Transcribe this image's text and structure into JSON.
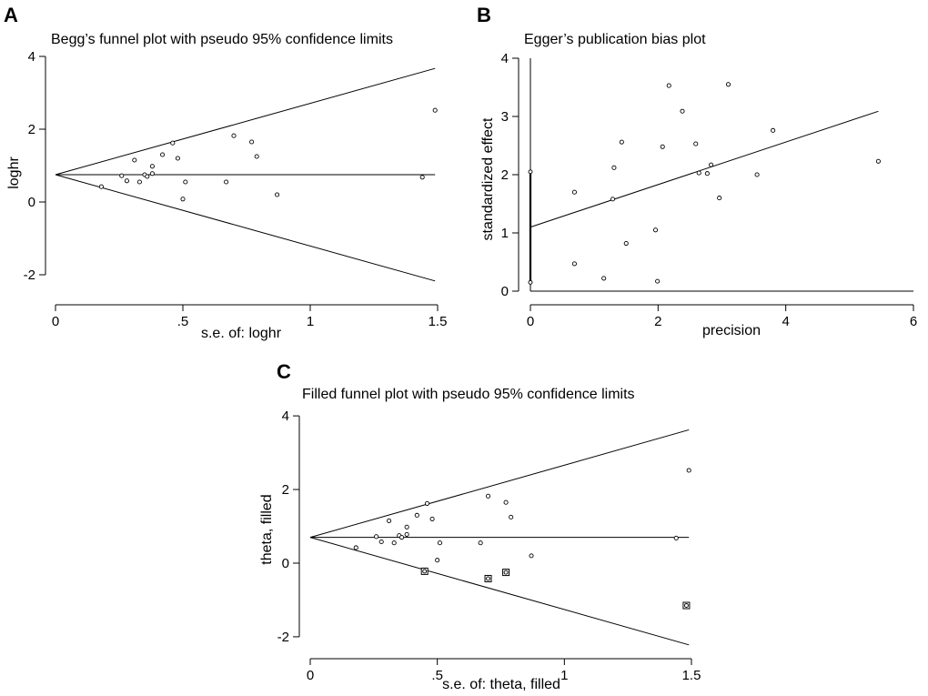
{
  "chart_data": [
    {
      "id": "A",
      "type": "scatter",
      "panel_letter": "A",
      "title": "Begg’s funnel plot with pseudo 95% confidence limits",
      "xlabel": "s.e. of: loghr",
      "ylabel": "loghr",
      "xlim": [
        0,
        1.5
      ],
      "ylim": [
        -2.2,
        4.2
      ],
      "xticks": [
        0,
        0.5,
        1,
        1.5
      ],
      "xtick_labels": [
        "0",
        ".5",
        "1",
        "1.5"
      ],
      "yticks": [
        -2,
        0,
        2,
        4
      ],
      "ytick_labels": [
        "-2",
        "0",
        "2",
        "4"
      ],
      "pooled": 0.75,
      "ci_multiplier": 1.96,
      "points": [
        [
          0.18,
          0.42
        ],
        [
          0.26,
          0.72
        ],
        [
          0.28,
          0.58
        ],
        [
          0.31,
          1.15
        ],
        [
          0.33,
          0.55
        ],
        [
          0.35,
          0.75
        ],
        [
          0.36,
          0.7
        ],
        [
          0.38,
          0.98
        ],
        [
          0.38,
          0.78
        ],
        [
          0.42,
          1.3
        ],
        [
          0.46,
          1.62
        ],
        [
          0.48,
          1.2
        ],
        [
          0.5,
          0.08
        ],
        [
          0.51,
          0.55
        ],
        [
          0.67,
          0.55
        ],
        [
          0.7,
          1.82
        ],
        [
          0.77,
          1.65
        ],
        [
          0.79,
          1.25
        ],
        [
          0.87,
          0.2
        ],
        [
          1.44,
          0.68
        ],
        [
          1.49,
          2.52
        ]
      ]
    },
    {
      "id": "B",
      "type": "scatter",
      "panel_letter": "B",
      "title": "Egger’s publication bias plot",
      "xlabel": "precision",
      "ylabel": "standardized effect",
      "xlim": [
        0,
        6
      ],
      "ylim": [
        0,
        4
      ],
      "xticks": [
        0,
        2,
        4,
        6
      ],
      "xtick_labels": [
        "0",
        "2",
        "4",
        "6"
      ],
      "yticks": [
        0,
        1,
        2,
        3,
        4
      ],
      "ytick_labels": [
        "0",
        "1",
        "2",
        "3",
        "4"
      ],
      "regression_line": {
        "intercept": 1.1,
        "slope": 0.365,
        "x_end": 5.45
      },
      "intercept_ci": [
        0.15,
        2.05
      ],
      "points": [
        [
          0.69,
          1.7
        ],
        [
          0.69,
          0.47
        ],
        [
          1.15,
          0.22
        ],
        [
          1.29,
          1.58
        ],
        [
          1.31,
          2.12
        ],
        [
          1.43,
          2.56
        ],
        [
          1.5,
          0.82
        ],
        [
          1.96,
          1.05
        ],
        [
          1.99,
          0.17
        ],
        [
          2.07,
          2.48
        ],
        [
          2.17,
          3.53
        ],
        [
          2.38,
          3.09
        ],
        [
          2.59,
          2.53
        ],
        [
          2.64,
          2.03
        ],
        [
          2.77,
          2.02
        ],
        [
          2.83,
          2.17
        ],
        [
          2.96,
          1.6
        ],
        [
          3.1,
          3.55
        ],
        [
          3.55,
          2.0
        ],
        [
          3.8,
          2.76
        ],
        [
          5.45,
          2.23
        ]
      ]
    },
    {
      "id": "C",
      "type": "scatter",
      "panel_letter": "C",
      "title": "Filled funnel plot with pseudo 95% confidence limits",
      "xlabel": "s.e. of: theta, filled",
      "ylabel": "theta, filled",
      "xlim": [
        0,
        1.5
      ],
      "ylim": [
        -2.2,
        4.2
      ],
      "xticks": [
        0,
        0.5,
        1,
        1.5
      ],
      "xtick_labels": [
        "0",
        ".5",
        "1",
        "1.5"
      ],
      "yticks": [
        -2,
        0,
        2,
        4
      ],
      "ytick_labels": [
        "-2",
        "0",
        "2",
        "4"
      ],
      "pooled": 0.7,
      "ci_multiplier": 1.96,
      "points": [
        [
          0.18,
          0.42
        ],
        [
          0.26,
          0.72
        ],
        [
          0.28,
          0.58
        ],
        [
          0.31,
          1.15
        ],
        [
          0.33,
          0.55
        ],
        [
          0.35,
          0.75
        ],
        [
          0.36,
          0.7
        ],
        [
          0.38,
          0.98
        ],
        [
          0.38,
          0.78
        ],
        [
          0.42,
          1.3
        ],
        [
          0.46,
          1.62
        ],
        [
          0.48,
          1.2
        ],
        [
          0.5,
          0.08
        ],
        [
          0.51,
          0.55
        ],
        [
          0.67,
          0.55
        ],
        [
          0.7,
          1.82
        ],
        [
          0.77,
          1.65
        ],
        [
          0.79,
          1.25
        ],
        [
          0.87,
          0.2
        ],
        [
          1.44,
          0.68
        ],
        [
          1.49,
          2.52
        ]
      ],
      "filled_points": [
        [
          0.45,
          -0.22
        ],
        [
          0.7,
          -0.42
        ],
        [
          0.77,
          -0.25
        ],
        [
          1.48,
          -1.15
        ]
      ]
    }
  ]
}
